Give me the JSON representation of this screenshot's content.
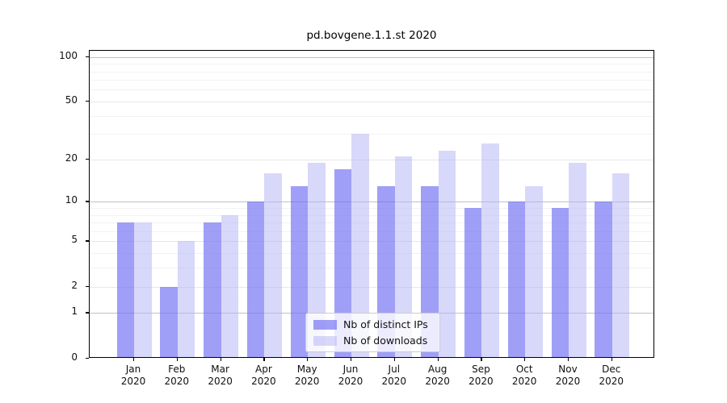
{
  "chart_data": {
    "type": "bar",
    "title": "pd.bovgene.1.1.st 2020",
    "categories": [
      "Jan",
      "Feb",
      "Mar",
      "Apr",
      "May",
      "Jun",
      "Jul",
      "Aug",
      "Sep",
      "Oct",
      "Nov",
      "Dec"
    ],
    "year": "2020",
    "series": [
      {
        "name": "Nb of distinct IPs",
        "color": "rgba(108,108,242,0.65)",
        "values": [
          7,
          2,
          7,
          10,
          13,
          17,
          13,
          13,
          9,
          10,
          9,
          10
        ]
      },
      {
        "name": "Nb of downloads",
        "color": "rgba(178,178,246,0.5)",
        "values": [
          7,
          5,
          8,
          16,
          19,
          30,
          21,
          23,
          26,
          13,
          19,
          16
        ]
      }
    ],
    "xlabel": "",
    "ylabel": "",
    "y_scale": "log10(1+v)",
    "ylim": [
      0,
      110
    ],
    "y_major_ticks": [
      0,
      1,
      2,
      5,
      10,
      20,
      50,
      100
    ],
    "y_minor_ticks": [
      3,
      4,
      6,
      7,
      8,
      9,
      30,
      40,
      60,
      70,
      80,
      90
    ],
    "grid": true,
    "legend_position": "lower-center-inside",
    "colors": {
      "background": "#ffffff",
      "spine": "#000000",
      "grid_decade": "#c2c2c2",
      "grid_major": "#e7e7e7",
      "grid_minor": "#f2f2f2",
      "legend_border": "#cccccc",
      "legend_background": "rgba(255,255,255,0.8)"
    }
  }
}
